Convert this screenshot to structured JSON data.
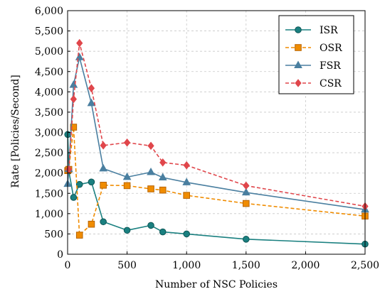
{
  "chart_data": {
    "type": "line",
    "title": "",
    "xlabel": "Number of NSC Policies",
    "ylabel": "Rate [Policies/Second]",
    "xlim": [
      0,
      2500
    ],
    "ylim": [
      0,
      6000
    ],
    "x_ticks": [
      0,
      500,
      1000,
      1500,
      2000,
      2500
    ],
    "x_tick_labels": [
      "0",
      "500",
      "1,000",
      "1,500",
      "2,000",
      "2,500"
    ],
    "y_ticks": [
      0,
      500,
      1000,
      1500,
      2000,
      2500,
      3000,
      3500,
      4000,
      4500,
      5000,
      5500,
      6000
    ],
    "y_tick_labels": [
      "0",
      "500",
      "1,000",
      "1,500",
      "2,000",
      "2,500",
      "3,000",
      "3,500",
      "4,000",
      "4,500",
      "5,000",
      "5,500",
      "6,000"
    ],
    "grid": true,
    "legend_position": "top-right",
    "series": [
      {
        "name": "ISR",
        "color": "#1a8080",
        "marker": "circle",
        "dash": "solid",
        "x": [
          1,
          10,
          50,
          100,
          200,
          300,
          500,
          700,
          800,
          1000,
          1500,
          2500
        ],
        "y": [
          2950,
          2050,
          1400,
          1720,
          1780,
          800,
          590,
          710,
          550,
          500,
          370,
          250
        ]
      },
      {
        "name": "OSR",
        "color": "#f08c00",
        "marker": "square",
        "dash": "dashed",
        "x": [
          1,
          10,
          50,
          100,
          200,
          300,
          500,
          700,
          800,
          1000,
          1500,
          2500
        ],
        "y": [
          2060,
          2090,
          3130,
          470,
          740,
          1700,
          1690,
          1610,
          1580,
          1450,
          1250,
          940
        ]
      },
      {
        "name": "FSR",
        "color": "#4a7fa0",
        "marker": "triangle",
        "dash": "solid",
        "x": [
          1,
          10,
          50,
          100,
          200,
          300,
          500,
          700,
          800,
          1000,
          1500,
          2500
        ],
        "y": [
          1730,
          2100,
          4170,
          4850,
          3720,
          2110,
          1900,
          2020,
          1890,
          1770,
          1520,
          1100
        ]
      },
      {
        "name": "CSR",
        "color": "#e0464b",
        "marker": "diamond",
        "dash": "dashed",
        "x": [
          10,
          50,
          100,
          200,
          300,
          500,
          700,
          800,
          1000,
          1500,
          2500
        ],
        "y": [
          2090,
          3820,
          5200,
          4090,
          2680,
          2750,
          2670,
          2260,
          2190,
          1690,
          1180
        ]
      }
    ]
  }
}
